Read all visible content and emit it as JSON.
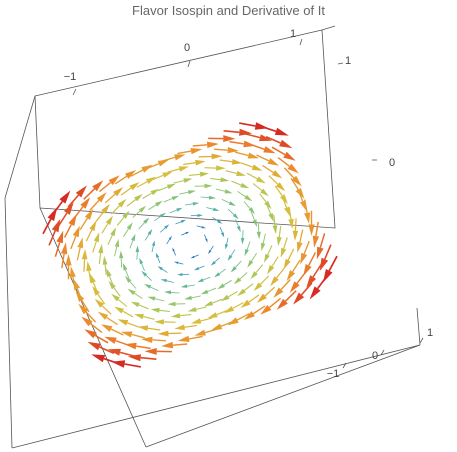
{
  "chart_data": {
    "type": "vector3d",
    "title": "Flavor Isospin and Derivative of It",
    "field": "swirl",
    "rotation": "clockwise",
    "domain": [
      -1,
      1
    ],
    "colormap": "rainbow",
    "colormap_stops": [
      "#2a3fc0",
      "#2b8fc2",
      "#5bb5a0",
      "#9bc964",
      "#d7c03c",
      "#ee8a2c",
      "#d62a23"
    ],
    "axes": {
      "top": {
        "ticks": [
          "−1",
          "0",
          "1"
        ]
      },
      "right": {
        "ticks": [
          "0",
          "1"
        ]
      },
      "bottom": {
        "ticks": [
          "−1",
          "0",
          "1"
        ]
      }
    }
  }
}
